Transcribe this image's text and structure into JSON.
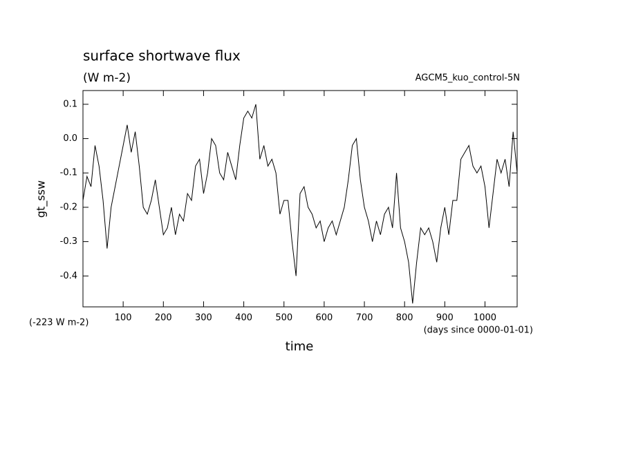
{
  "chart_data": {
    "type": "line",
    "title": "surface shortwave flux",
    "subtitle": "(W m-2)",
    "annotation_right": "AGCM5_kuo_control-5N",
    "annotation_offset": "(-223 W m-2)",
    "annotation_units": "(days since 0000-01-01)",
    "xlabel": "time",
    "ylabel": "gt_ssw",
    "xlim": [
      0,
      1080
    ],
    "ylim": [
      -0.49,
      0.14
    ],
    "xticks": [
      100,
      200,
      300,
      400,
      500,
      600,
      700,
      800,
      900,
      1000
    ],
    "yticks": [
      0.1,
      {
        "value": 0,
        "label": "0.0"
      },
      -0.1,
      -0.2,
      -0.3,
      -0.4
    ],
    "grid": false,
    "x": [
      0,
      10,
      20,
      30,
      40,
      50,
      60,
      70,
      80,
      90,
      100,
      110,
      120,
      130,
      140,
      150,
      160,
      170,
      180,
      190,
      200,
      210,
      220,
      230,
      240,
      250,
      260,
      270,
      280,
      290,
      300,
      310,
      320,
      330,
      340,
      350,
      360,
      370,
      380,
      390,
      400,
      410,
      420,
      430,
      440,
      450,
      460,
      470,
      480,
      490,
      500,
      510,
      520,
      530,
      540,
      550,
      560,
      570,
      580,
      590,
      600,
      610,
      620,
      630,
      640,
      650,
      660,
      670,
      680,
      690,
      700,
      710,
      720,
      730,
      740,
      750,
      760,
      770,
      780,
      790,
      800,
      810,
      820,
      830,
      840,
      850,
      860,
      870,
      880,
      890,
      900,
      910,
      920,
      930,
      940,
      950,
      960,
      970,
      980,
      990,
      1000,
      1010,
      1020,
      1030,
      1040,
      1050,
      1060,
      1070,
      1080
    ],
    "series": [
      {
        "name": "gt_ssw",
        "color": "#000000",
        "values": [
          -0.18,
          -0.11,
          -0.14,
          -0.02,
          -0.08,
          -0.18,
          -0.32,
          -0.2,
          -0.14,
          -0.08,
          -0.02,
          0.04,
          -0.04,
          0.02,
          -0.08,
          -0.2,
          -0.22,
          -0.18,
          -0.12,
          -0.2,
          -0.28,
          -0.26,
          -0.2,
          -0.28,
          -0.22,
          -0.24,
          -0.16,
          -0.18,
          -0.08,
          -0.06,
          -0.16,
          -0.1,
          0.0,
          -0.02,
          -0.1,
          -0.12,
          -0.04,
          -0.08,
          -0.12,
          -0.02,
          0.06,
          0.08,
          0.06,
          0.1,
          -0.06,
          -0.02,
          -0.08,
          -0.06,
          -0.1,
          -0.22,
          -0.18,
          -0.18,
          -0.3,
          -0.4,
          -0.16,
          -0.14,
          -0.2,
          -0.22,
          -0.26,
          -0.24,
          -0.3,
          -0.26,
          -0.24,
          -0.28,
          -0.24,
          -0.2,
          -0.12,
          -0.02,
          0.0,
          -0.12,
          -0.2,
          -0.24,
          -0.3,
          -0.24,
          -0.28,
          -0.22,
          -0.2,
          -0.26,
          -0.1,
          -0.26,
          -0.3,
          -0.36,
          -0.48,
          -0.36,
          -0.26,
          -0.28,
          -0.26,
          -0.3,
          -0.36,
          -0.26,
          -0.2,
          -0.28,
          -0.18,
          -0.18,
          -0.06,
          -0.04,
          -0.02,
          -0.08,
          -0.1,
          -0.08,
          -0.14,
          -0.26,
          -0.16,
          -0.06,
          -0.1,
          -0.06,
          -0.14,
          0.02,
          -0.1
        ]
      }
    ]
  }
}
